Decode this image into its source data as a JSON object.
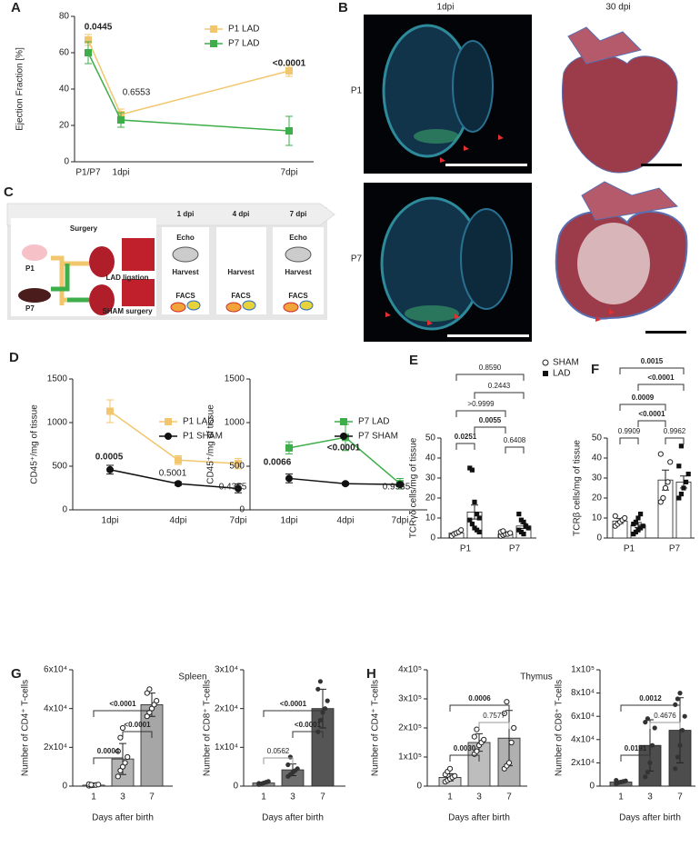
{
  "panels": [
    "A",
    "B",
    "C",
    "D",
    "E",
    "F",
    "G",
    "H"
  ],
  "images": {
    "columns": [
      "1dpi",
      "30 dpi"
    ],
    "rows": [
      "P1",
      "P7"
    ]
  },
  "diagram": {
    "surgery": "Surgery",
    "groups": [
      "P1",
      "P7"
    ],
    "procedures": [
      "LAD ligation",
      "SHAM surgery"
    ],
    "timepoints": [
      {
        "day": "1 dpi",
        "steps": [
          "Echo",
          "Harvest",
          "FACS"
        ]
      },
      {
        "day": "4 dpi",
        "steps": [
          "Harvest",
          "FACS"
        ]
      },
      {
        "day": "7 dpi",
        "steps": [
          "Echo",
          "Harvest",
          "FACS"
        ]
      }
    ]
  },
  "chart_data": [
    {
      "type": "line",
      "ylabel": "Ejection Fraction [%]",
      "categories": [
        "P1/P7",
        "1dpi",
        "7dpi"
      ],
      "series": [
        {
          "name": "P1 LAD",
          "color": "#f2c66d",
          "marker": "square",
          "values": [
            67,
            26,
            50
          ],
          "errors": [
            3,
            3,
            3
          ]
        },
        {
          "name": "P7 LAD",
          "color": "#3dae4a",
          "marker": "square",
          "values": [
            60,
            23,
            17
          ],
          "errors": [
            6,
            4,
            8
          ]
        }
      ],
      "ylim": [
        0,
        80
      ],
      "yticks": [
        0,
        20,
        40,
        60,
        80
      ],
      "annotations": [
        "0.0445",
        "0.6553",
        "<0.0001"
      ]
    },
    {
      "type": "line",
      "ylabel": "CD45⁺/mg of tissue",
      "categories": [
        "1dpi",
        "4dpi",
        "7dpi"
      ],
      "series": [
        {
          "name": "P1 LAD",
          "color": "#f2c66d",
          "marker": "square",
          "values": [
            1130,
            570,
            530
          ],
          "errors": [
            130,
            50,
            60
          ]
        },
        {
          "name": "P1 SHAM",
          "color": "#111111",
          "marker": "circle",
          "values": [
            460,
            300,
            245
          ],
          "errors": [
            50,
            20,
            50
          ]
        }
      ],
      "ylim": [
        0,
        1500
      ],
      "yticks": [
        0,
        500,
        1000,
        1500
      ],
      "annotations": [
        "0.0005",
        "0.5001",
        "0.4355"
      ]
    },
    {
      "type": "line",
      "ylabel": "CD45⁺/mg of tissue",
      "categories": [
        "1dpi",
        "4dpi",
        "7dpi"
      ],
      "series": [
        {
          "name": "P7 LAD",
          "color": "#3dae4a",
          "marker": "square",
          "values": [
            710,
            830,
            300
          ],
          "errors": [
            70,
            150,
            60
          ]
        },
        {
          "name": "P7 SHAM",
          "color": "#111111",
          "marker": "circle",
          "values": [
            360,
            300,
            290
          ],
          "errors": [
            50,
            15,
            20
          ]
        }
      ],
      "ylim": [
        0,
        1500
      ],
      "yticks": [
        0,
        500,
        1000,
        1500
      ],
      "annotations": [
        "0.0066",
        "<0.0001",
        "0.9935"
      ]
    },
    {
      "type": "bar",
      "ylabel": "TCRγδ cells/mg of tissue",
      "categories": [
        "P1",
        "P7"
      ],
      "legend": "top right",
      "series": [
        {
          "name": "SHAM",
          "color": "#ffffff",
          "marker": "circle-open",
          "values": [
            2.5,
            2
          ],
          "errors": [
            0.6,
            0.4
          ],
          "points": [
            [
              1,
              2,
              2.5,
              3,
              4
            ],
            [
              1,
              1.5,
              2,
              2,
              2.5,
              3,
              3.5
            ]
          ]
        },
        {
          "name": "LAD",
          "color": "#ffffff",
          "marker": "square",
          "values": [
            13,
            6
          ],
          "errors": [
            3.5,
            1.2
          ],
          "points": [
            [
              35,
              34,
              18,
              12,
              10,
              9,
              7,
              5,
              4,
              3
            ],
            [
              12,
              9,
              8,
              6,
              5,
              4,
              3,
              2
            ]
          ]
        }
      ],
      "ylim": [
        0,
        50
      ],
      "yticks": [
        0,
        10,
        20,
        30,
        40,
        50
      ],
      "annotations": [
        "0.8590",
        "0.2443",
        ">0.9999",
        "0.0055",
        "0.0251",
        "0.6408"
      ]
    },
    {
      "type": "bar",
      "ylabel": "TCRβ cells/mg of tissue",
      "categories": [
        "P1",
        "P7"
      ],
      "series": [
        {
          "color": "#ffffff",
          "marker": "circle-open",
          "values": [
            8.5,
            29
          ],
          "errors": [
            1.2,
            5
          ],
          "points": [
            [
              6,
              7,
              8,
              9,
              10,
              11
            ],
            [
              18,
              20,
              25,
              28,
              38,
              42
            ]
          ]
        },
        {
          "color": "#ffffff",
          "marker": "square",
          "values": [
            6.5,
            28
          ],
          "errors": [
            1.2,
            3
          ],
          "points": [
            [
              2,
              3,
              4,
              5,
              6,
              7,
              8,
              10,
              12
            ],
            [
              20,
              22,
              25,
              28,
              32,
              36,
              46
            ]
          ]
        }
      ],
      "ylim": [
        0,
        50
      ],
      "yticks": [
        0,
        10,
        20,
        30,
        40,
        50
      ],
      "annotations": [
        "0.0015",
        "<0.0001",
        "0.0009",
        "<0.0001",
        "0.9909",
        "0.9962"
      ]
    },
    {
      "type": "bar",
      "title": "Spleen",
      "ylabel": "Number of CD4⁺ T-cells",
      "xlabel": "Days after birth",
      "categories": [
        "1",
        "3",
        "7"
      ],
      "values": [
        500,
        14000,
        42000
      ],
      "errors": [
        200,
        8000,
        6000
      ],
      "colors": [
        "#d9d9d9",
        "#b3b3b3",
        "#a6a6a6"
      ],
      "marker": "circle-open",
      "points": [
        [
          200,
          400,
          500,
          600,
          800,
          1000,
          700
        ],
        [
          5000,
          8000,
          10000,
          12000,
          15000,
          18000,
          25000,
          30000
        ],
        [
          36000,
          38000,
          40000,
          42000,
          44000,
          48000,
          50000
        ]
      ],
      "ylim": [
        0,
        60000
      ],
      "yticks": [
        0,
        {
          "value": 20000,
          "label": "2x10⁴"
        },
        {
          "value": 40000,
          "label": "4x10⁴"
        },
        {
          "value": 60000,
          "label": "6x10⁴"
        }
      ],
      "annotations": [
        "<0.0001",
        "<0.0001",
        "0.0004"
      ]
    },
    {
      "type": "bar",
      "ylabel": "Number of CD8⁺ T-cells",
      "xlabel": "Days after birth",
      "categories": [
        "1",
        "3",
        "7"
      ],
      "values": [
        800,
        4200,
        20000
      ],
      "errors": [
        200,
        1500,
        5000
      ],
      "colors": [
        "#8c8c8c",
        "#6e6e6e",
        "#555555"
      ],
      "marker": "circle",
      "points": [
        [
          400,
          600,
          800,
          1000,
          1200,
          700
        ],
        [
          2500,
          3000,
          3500,
          4000,
          4500,
          5500,
          7500
        ],
        [
          14000,
          17000,
          19000,
          20000,
          22000,
          25000,
          27000
        ]
      ],
      "ylim": [
        0,
        30000
      ],
      "yticks": [
        0,
        {
          "value": 10000,
          "label": "1x10⁴"
        },
        {
          "value": 20000,
          "label": "2x10⁴"
        },
        {
          "value": 30000,
          "label": "3x10⁴"
        }
      ],
      "annotations": [
        "<0.0001",
        "<0.0001",
        "0.0562"
      ]
    },
    {
      "type": "bar",
      "title": "Thymus",
      "ylabel": "Number of CD4⁺ T-cells",
      "xlabel": "Days after birth",
      "categories": [
        "1",
        "3",
        "7"
      ],
      "values": [
        30000,
        150000,
        165000
      ],
      "errors": [
        12000,
        30000,
        95000
      ],
      "colors": [
        "#d0d0d0",
        "#bdbdbd",
        "#b0b0b0"
      ],
      "marker": "circle-open",
      "points": [
        [
          15000,
          20000,
          25000,
          30000,
          35000,
          40000,
          50000,
          60000
        ],
        [
          110000,
          120000,
          140000,
          150000,
          160000,
          170000,
          195000
        ],
        [
          60000,
          70000,
          80000,
          150000,
          200000,
          250000,
          290000
        ]
      ],
      "ylim": [
        0,
        400000
      ],
      "yticks": [
        0,
        {
          "value": 100000,
          "label": "1x10⁵"
        },
        {
          "value": 200000,
          "label": "2x10⁵"
        },
        {
          "value": 300000,
          "label": "3x10⁵"
        },
        {
          "value": 400000,
          "label": "4x10⁵"
        }
      ],
      "annotations": [
        "0.0006",
        "0.7577",
        "0.0030"
      ]
    },
    {
      "type": "bar",
      "ylabel": "Number of CD8⁺ T-cells",
      "xlabel": "Days after birth",
      "categories": [
        "1",
        "3",
        "7"
      ],
      "values": [
        3500,
        35000,
        48000
      ],
      "errors": [
        1000,
        22000,
        28000
      ],
      "colors": [
        "#707070",
        "#4d4d4d",
        "#4d4d4d"
      ],
      "marker": "circle",
      "points": [
        [
          2000,
          3000,
          3500,
          4000,
          4500,
          5000
        ],
        [
          8000,
          12000,
          20000,
          35000,
          50000,
          55000,
          58000
        ],
        [
          15000,
          25000,
          35000,
          48000,
          60000,
          70000,
          75000,
          80000
        ]
      ],
      "ylim": [
        0,
        100000
      ],
      "yticks": [
        0,
        {
          "value": 20000,
          "label": "2x10⁴"
        },
        {
          "value": 40000,
          "label": "4x10⁴"
        },
        {
          "value": 60000,
          "label": "6x10⁴"
        },
        {
          "value": 80000,
          "label": "8x10⁴"
        },
        {
          "value": 100000,
          "label": "1x10⁵"
        }
      ],
      "annotations": [
        "0.0012",
        "0.4676",
        "0.0191"
      ]
    }
  ]
}
